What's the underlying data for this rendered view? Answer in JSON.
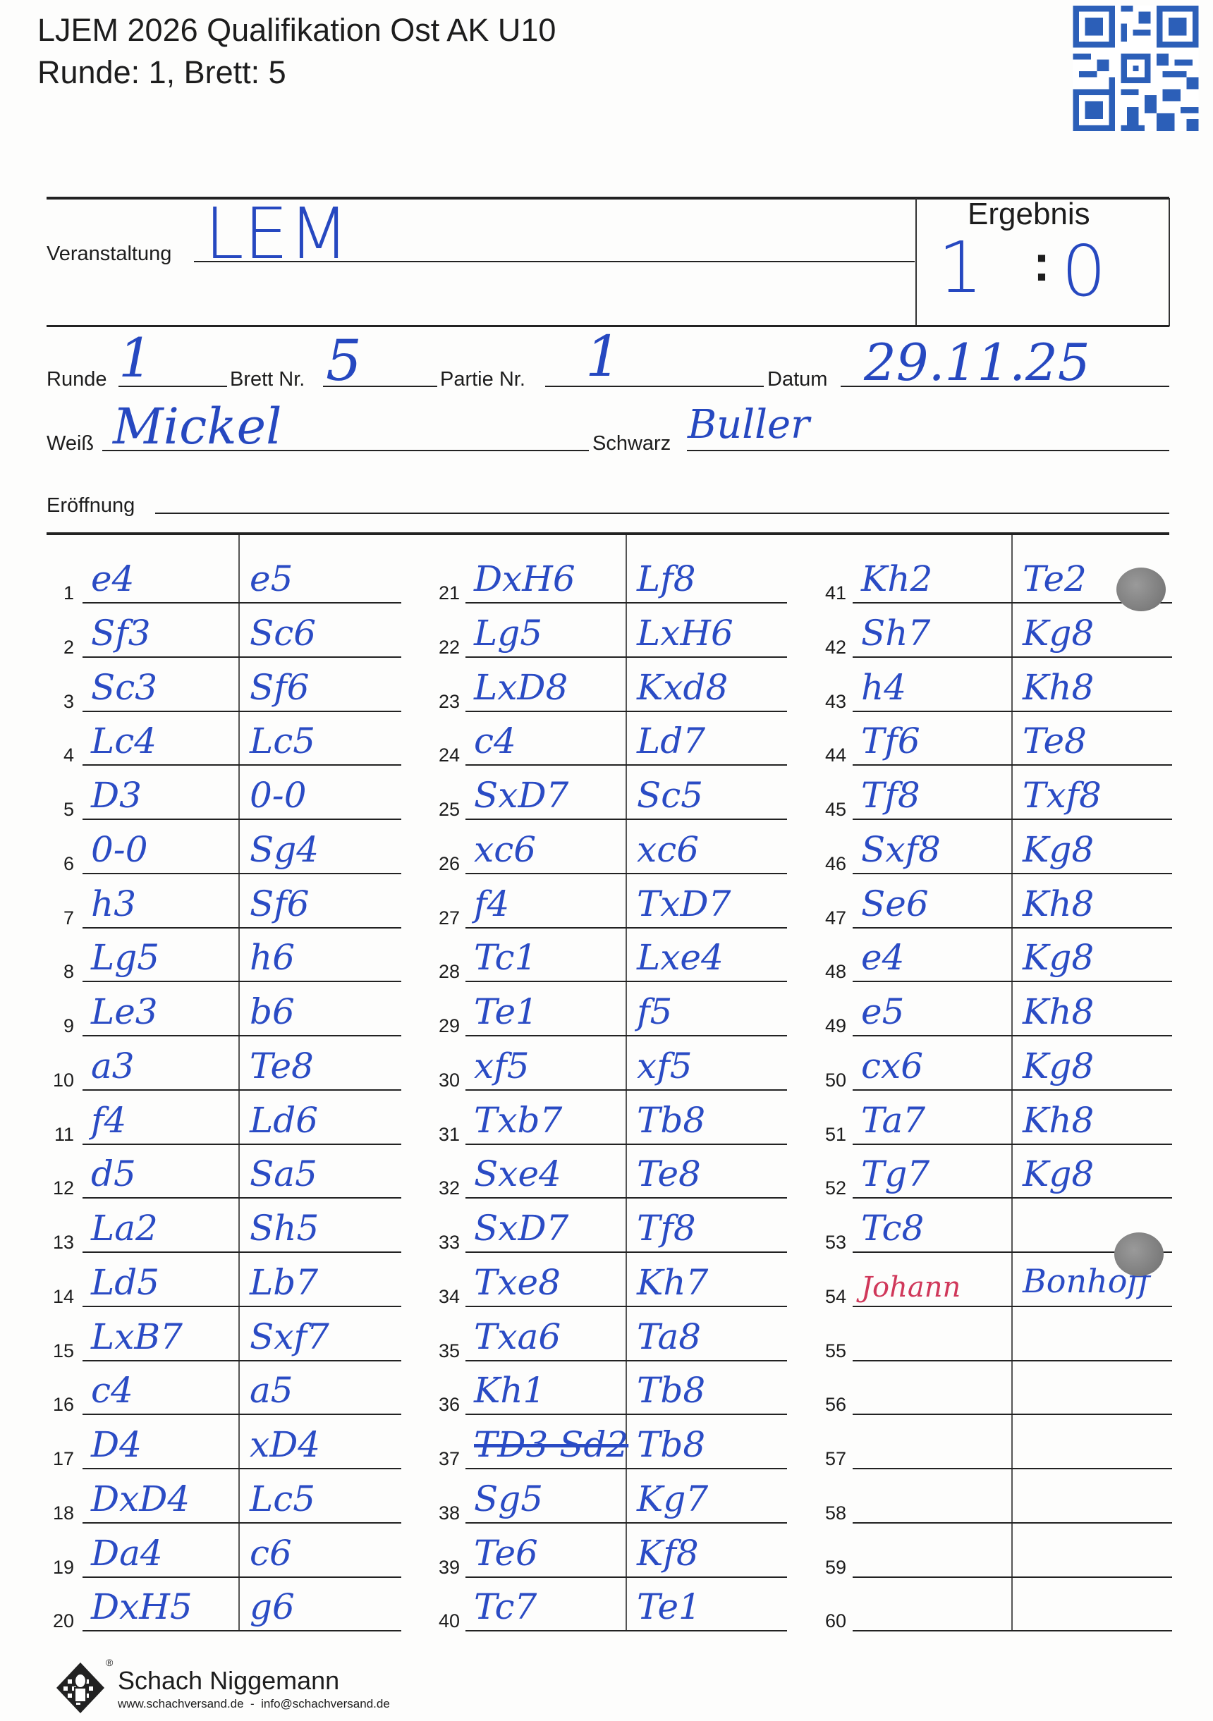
{
  "header": {
    "title_line1": "LJEM 2026 Qualifikation Ost AK U10",
    "title_line2": "Runde: 1, Brett: 5",
    "qr_code": "qr-code-icon"
  },
  "form": {
    "veranstaltung_label": "Veranstaltung",
    "veranstaltung_value": "LEM",
    "ergebnis_label": "Ergebnis",
    "ergebnis_white": "1",
    "ergebnis_colon": ":",
    "ergebnis_black": "0",
    "runde_label": "Runde",
    "runde_value": "1",
    "brett_label": "Brett Nr.",
    "brett_value": "5",
    "partie_label": "Partie Nr.",
    "partie_value": "1",
    "datum_label": "Datum",
    "datum_value": "29.11.25",
    "weiss_label": "Weiß",
    "weiss_value": "Mickel",
    "schwarz_label": "Schwarz",
    "schwarz_value": "Buller",
    "eroeffnung_label": "Eröffnung",
    "eroeffnung_value": ""
  },
  "moves": [
    {
      "no": "1",
      "white": "e4",
      "black": "e5"
    },
    {
      "no": "2",
      "white": "Sf3",
      "black": "Sc6"
    },
    {
      "no": "3",
      "white": "Sc3",
      "black": "Sf6"
    },
    {
      "no": "4",
      "white": "Lc4",
      "black": "Lc5"
    },
    {
      "no": "5",
      "white": "D3",
      "black": "0-0"
    },
    {
      "no": "6",
      "white": "0-0",
      "black": "Sg4"
    },
    {
      "no": "7",
      "white": "h3",
      "black": "Sf6"
    },
    {
      "no": "8",
      "white": "Lg5",
      "black": "h6"
    },
    {
      "no": "9",
      "white": "Le3",
      "black": "b6"
    },
    {
      "no": "10",
      "white": "a3",
      "black": "Te8"
    },
    {
      "no": "11",
      "white": "f4",
      "black": "Ld6"
    },
    {
      "no": "12",
      "white": "d5",
      "black": "Sa5"
    },
    {
      "no": "13",
      "white": "La2",
      "black": "Sh5"
    },
    {
      "no": "14",
      "white": "Ld5",
      "black": "Lb7"
    },
    {
      "no": "15",
      "white": "LxB7",
      "black": "Sxf7"
    },
    {
      "no": "16",
      "white": "c4",
      "black": "a5"
    },
    {
      "no": "17",
      "white": "D4",
      "black": "xD4"
    },
    {
      "no": "18",
      "white": "DxD4",
      "black": "Lc5"
    },
    {
      "no": "19",
      "white": "Da4",
      "black": "c6"
    },
    {
      "no": "20",
      "white": "DxH5",
      "black": "g6"
    },
    {
      "no": "21",
      "white": "DxH6",
      "black": "Lf8"
    },
    {
      "no": "22",
      "white": "Lg5",
      "black": "LxH6"
    },
    {
      "no": "23",
      "white": "LxD8",
      "black": "Kxd8"
    },
    {
      "no": "24",
      "white": "c4",
      "black": "Ld7"
    },
    {
      "no": "25",
      "white": "SxD7",
      "black": "Sc5"
    },
    {
      "no": "26",
      "white": "xc6",
      "black": "xc6"
    },
    {
      "no": "27",
      "white": "f4",
      "black": "TxD7"
    },
    {
      "no": "28",
      "white": "Tc1",
      "black": "Lxe4"
    },
    {
      "no": "29",
      "white": "Te1",
      "black": "f5"
    },
    {
      "no": "30",
      "white": "xf5",
      "black": "xf5"
    },
    {
      "no": "31",
      "white": "Txb7",
      "black": "Tb8"
    },
    {
      "no": "32",
      "white": "Sxe4",
      "black": "Te8"
    },
    {
      "no": "33",
      "white": "SxD7",
      "black": "Tf8"
    },
    {
      "no": "34",
      "white": "Txe8",
      "black": "Kh7"
    },
    {
      "no": "35",
      "white": "Txa6",
      "black": "Ta8"
    },
    {
      "no": "36",
      "white": "Kh1",
      "black": "Tb8"
    },
    {
      "no": "37",
      "white": "TD3 Sd2",
      "black": "Tb8",
      "white_struck": true
    },
    {
      "no": "38",
      "white": "Sg5",
      "black": "Kg7"
    },
    {
      "no": "39",
      "white": "Te6",
      "black": "Kf8"
    },
    {
      "no": "40",
      "white": "Tc7",
      "black": "Te1"
    },
    {
      "no": "41",
      "white": "Kh2",
      "black": "Te2"
    },
    {
      "no": "42",
      "white": "Sh7",
      "black": "Kg8"
    },
    {
      "no": "43",
      "white": "h4",
      "black": "Kh8"
    },
    {
      "no": "44",
      "white": "Tf6",
      "black": "Te8"
    },
    {
      "no": "45",
      "white": "Tf8",
      "black": "Txf8"
    },
    {
      "no": "46",
      "white": "Sxf8",
      "black": "Kg8"
    },
    {
      "no": "47",
      "white": "Se6",
      "black": "Kh8"
    },
    {
      "no": "48",
      "white": "e4",
      "black": "Kg8"
    },
    {
      "no": "49",
      "white": "e5",
      "black": "Kh8"
    },
    {
      "no": "50",
      "white": "cx6",
      "black": "Kg8"
    },
    {
      "no": "51",
      "white": "Ta7",
      "black": "Kh8"
    },
    {
      "no": "52",
      "white": "Tg7",
      "black": "Kg8"
    },
    {
      "no": "53",
      "white": "Tc8",
      "black": ""
    },
    {
      "no": "54",
      "white": "Johann",
      "black": "Bonhoff",
      "signatures": true
    },
    {
      "no": "55",
      "white": "",
      "black": ""
    },
    {
      "no": "56",
      "white": "",
      "black": ""
    },
    {
      "no": "57",
      "white": "",
      "black": ""
    },
    {
      "no": "58",
      "white": "",
      "black": ""
    },
    {
      "no": "59",
      "white": "",
      "black": ""
    },
    {
      "no": "60",
      "white": "",
      "black": ""
    }
  ],
  "footer": {
    "brand": "Schach Niggemann",
    "registered": "®",
    "contact": "www.schachversand.de  -  info@schachversand.de",
    "logo": "chess-king-logo-icon"
  },
  "colors": {
    "ink_blue": "#2a4bc4",
    "ink_red": "#d0385a",
    "print": "#1d1d1d"
  }
}
